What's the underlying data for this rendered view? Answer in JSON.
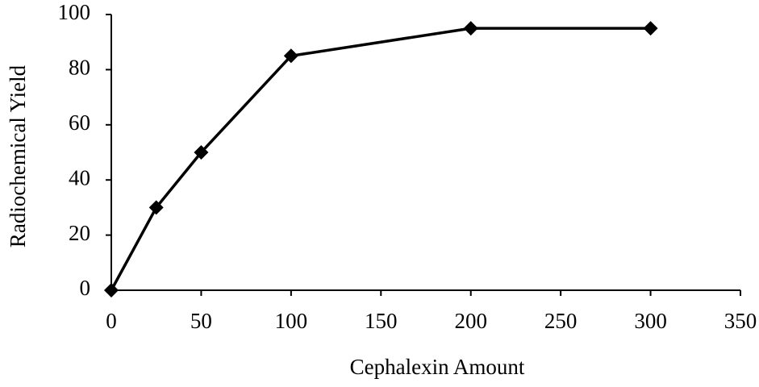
{
  "chart_data": {
    "type": "line",
    "x": [
      0,
      25,
      50,
      100,
      200,
      300
    ],
    "values": [
      0,
      30,
      50,
      85,
      95,
      95
    ],
    "color": "#000000",
    "xlabel": "Cephalexin Amount",
    "ylabel": "Radiochemical Yield",
    "xlim": [
      0,
      350
    ],
    "xticks": [
      0,
      50,
      100,
      150,
      200,
      250,
      300,
      350
    ],
    "ylim": [
      0,
      100
    ],
    "yticks": [
      0,
      20,
      40,
      60,
      80,
      100
    ],
    "grid": false
  }
}
